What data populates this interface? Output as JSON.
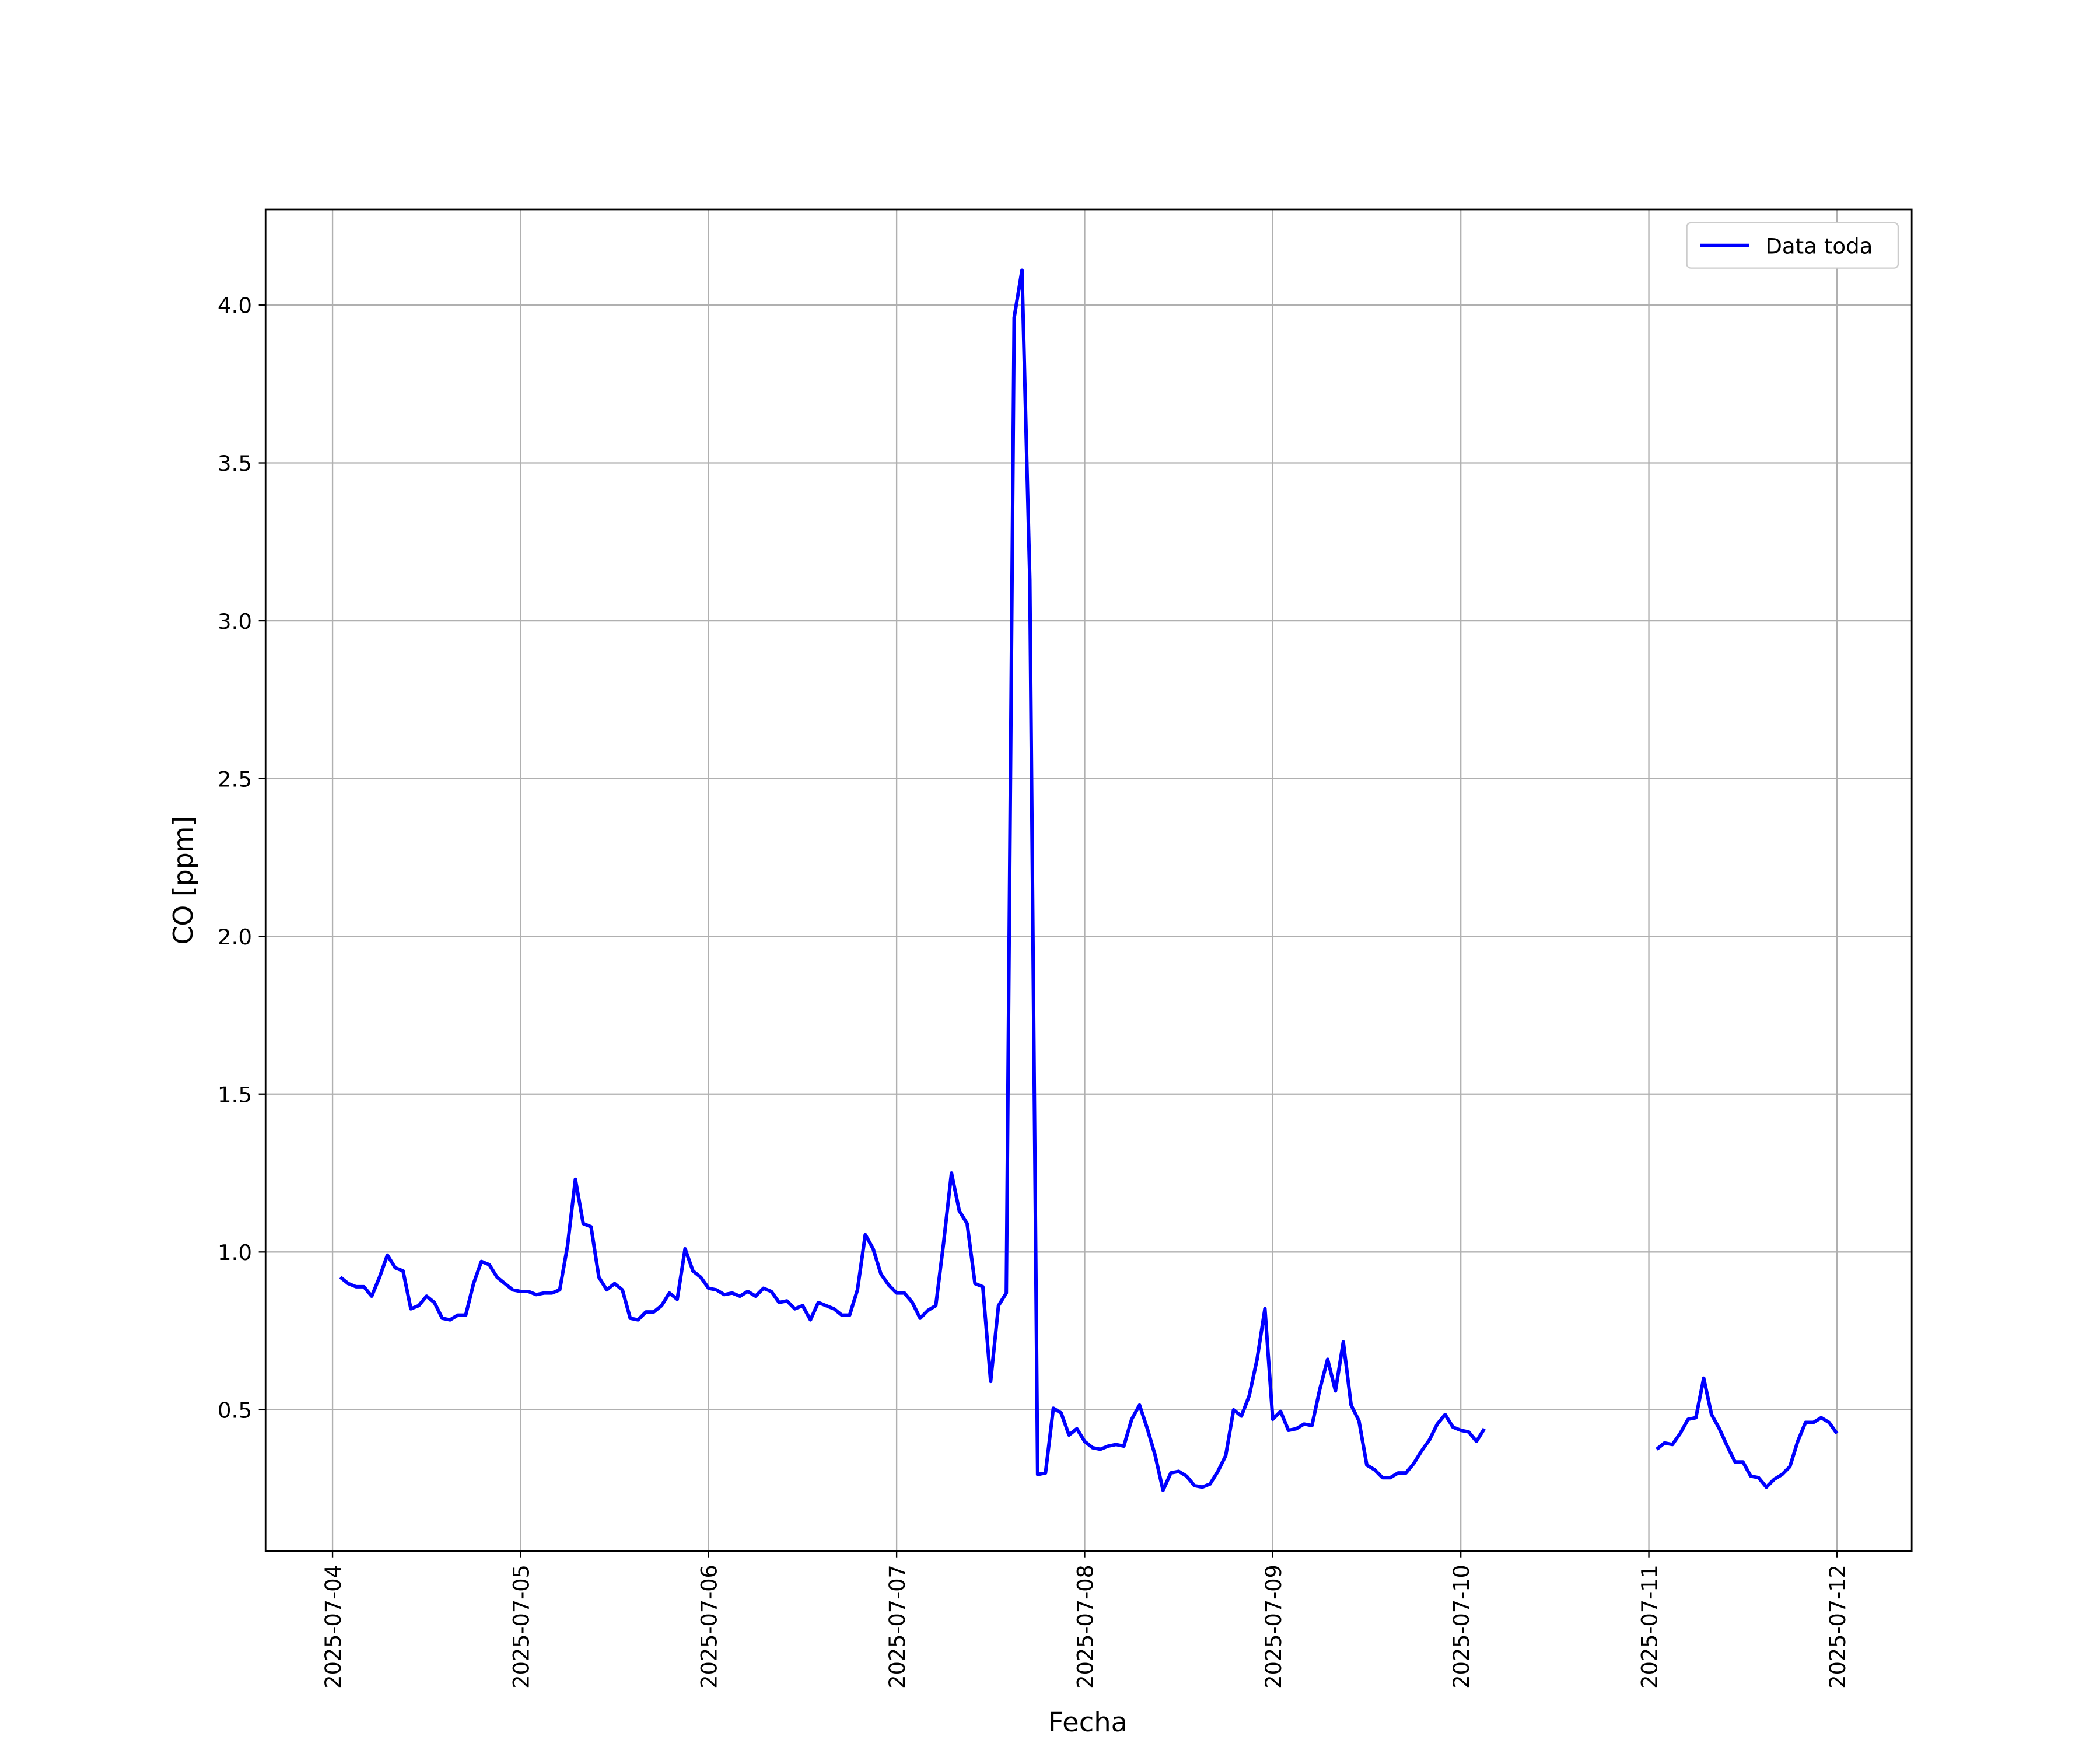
{
  "chart_data": {
    "type": "line",
    "xlabel": "Fecha",
    "ylabel": "CO [ppm]",
    "x": [
      "2025-07-04 01:00",
      "2025-07-04 02:00",
      "2025-07-04 03:00",
      "2025-07-04 04:00",
      "2025-07-04 05:00",
      "2025-07-04 06:00",
      "2025-07-04 07:00",
      "2025-07-04 08:00",
      "2025-07-04 09:00",
      "2025-07-04 10:00",
      "2025-07-04 11:00",
      "2025-07-04 12:00",
      "2025-07-04 13:00",
      "2025-07-04 14:00",
      "2025-07-04 15:00",
      "2025-07-04 16:00",
      "2025-07-04 17:00",
      "2025-07-04 18:00",
      "2025-07-04 19:00",
      "2025-07-04 20:00",
      "2025-07-04 21:00",
      "2025-07-04 22:00",
      "2025-07-04 23:00",
      "2025-07-05 00:00",
      "2025-07-05 01:00",
      "2025-07-05 02:00",
      "2025-07-05 03:00",
      "2025-07-05 04:00",
      "2025-07-05 05:00",
      "2025-07-05 06:00",
      "2025-07-05 07:00",
      "2025-07-05 08:00",
      "2025-07-05 09:00",
      "2025-07-05 10:00",
      "2025-07-05 11:00",
      "2025-07-05 12:00",
      "2025-07-05 13:00",
      "2025-07-05 14:00",
      "2025-07-05 15:00",
      "2025-07-05 16:00",
      "2025-07-05 17:00",
      "2025-07-05 18:00",
      "2025-07-05 19:00",
      "2025-07-05 20:00",
      "2025-07-05 21:00",
      "2025-07-05 22:00",
      "2025-07-05 23:00",
      "2025-07-06 00:00",
      "2025-07-06 01:00",
      "2025-07-06 02:00",
      "2025-07-06 03:00",
      "2025-07-06 04:00",
      "2025-07-06 05:00",
      "2025-07-06 06:00",
      "2025-07-06 07:00",
      "2025-07-06 08:00",
      "2025-07-06 09:00",
      "2025-07-06 10:00",
      "2025-07-06 11:00",
      "2025-07-06 12:00",
      "2025-07-06 13:00",
      "2025-07-06 14:00",
      "2025-07-06 15:00",
      "2025-07-06 16:00",
      "2025-07-06 17:00",
      "2025-07-06 18:00",
      "2025-07-06 19:00",
      "2025-07-06 20:00",
      "2025-07-06 21:00",
      "2025-07-06 22:00",
      "2025-07-06 23:00",
      "2025-07-07 00:00",
      "2025-07-07 01:00",
      "2025-07-07 02:00",
      "2025-07-07 03:00",
      "2025-07-07 04:00",
      "2025-07-07 05:00",
      "2025-07-07 06:00",
      "2025-07-07 07:00",
      "2025-07-07 08:00",
      "2025-07-07 09:00",
      "2025-07-07 10:00",
      "2025-07-07 11:00",
      "2025-07-07 12:00",
      "2025-07-07 13:00",
      "2025-07-07 14:00",
      "2025-07-07 15:00",
      "2025-07-07 16:00",
      "2025-07-07 17:00",
      "2025-07-07 18:00",
      "2025-07-07 19:00",
      "2025-07-07 20:00",
      "2025-07-07 21:00",
      "2025-07-07 22:00",
      "2025-07-07 23:00",
      "2025-07-08 00:00",
      "2025-07-08 01:00",
      "2025-07-08 02:00",
      "2025-07-08 03:00",
      "2025-07-08 04:00",
      "2025-07-08 05:00",
      "2025-07-08 06:00",
      "2025-07-08 07:00",
      "2025-07-08 08:00",
      "2025-07-08 09:00",
      "2025-07-08 10:00",
      "2025-07-08 11:00",
      "2025-07-08 12:00",
      "2025-07-08 13:00",
      "2025-07-08 14:00",
      "2025-07-08 15:00",
      "2025-07-08 16:00",
      "2025-07-08 17:00",
      "2025-07-08 18:00",
      "2025-07-08 19:00",
      "2025-07-08 20:00",
      "2025-07-08 21:00",
      "2025-07-08 22:00",
      "2025-07-08 23:00",
      "2025-07-09 00:00",
      "2025-07-09 01:00",
      "2025-07-09 02:00",
      "2025-07-09 03:00",
      "2025-07-09 04:00",
      "2025-07-09 05:00",
      "2025-07-09 06:00",
      "2025-07-09 07:00",
      "2025-07-09 08:00",
      "2025-07-09 09:00",
      "2025-07-09 10:00",
      "2025-07-09 11:00",
      "2025-07-09 12:00",
      "2025-07-09 13:00",
      "2025-07-09 14:00",
      "2025-07-09 15:00",
      "2025-07-09 16:00",
      "2025-07-09 17:00",
      "2025-07-09 18:00",
      "2025-07-09 19:00",
      "2025-07-09 20:00",
      "2025-07-09 21:00",
      "2025-07-09 22:00",
      "2025-07-09 23:00",
      "2025-07-10 00:00",
      "2025-07-10 01:00",
      "2025-07-10 02:00",
      "2025-07-10 03:00",
      "2025-07-10 04:00",
      "2025-07-11 01:00",
      "2025-07-11 02:00",
      "2025-07-11 03:00",
      "2025-07-11 04:00",
      "2025-07-11 05:00",
      "2025-07-11 06:00",
      "2025-07-11 07:00",
      "2025-07-11 08:00",
      "2025-07-11 09:00",
      "2025-07-11 10:00",
      "2025-07-11 11:00",
      "2025-07-11 12:00",
      "2025-07-11 13:00",
      "2025-07-11 14:00",
      "2025-07-11 15:00",
      "2025-07-11 16:00",
      "2025-07-11 17:00",
      "2025-07-11 18:00",
      "2025-07-11 19:00",
      "2025-07-11 20:00",
      "2025-07-11 21:00",
      "2025-07-11 22:00",
      "2025-07-11 23:00",
      "2025-07-12 00:00"
    ],
    "series": [
      {
        "name": "Data toda",
        "color": "#0000ff",
        "values": [
          0.92,
          0.9,
          0.89,
          0.89,
          0.86,
          0.92,
          0.99,
          0.95,
          0.94,
          0.82,
          0.83,
          0.86,
          0.84,
          0.79,
          0.785,
          0.8,
          0.8,
          0.9,
          0.97,
          0.96,
          0.92,
          0.9,
          0.88,
          0.875,
          0.875,
          0.865,
          0.87,
          0.87,
          0.88,
          1.02,
          1.23,
          1.09,
          1.08,
          0.92,
          0.88,
          0.9,
          0.88,
          0.79,
          0.785,
          0.81,
          0.81,
          0.83,
          0.87,
          0.85,
          1.01,
          0.94,
          0.92,
          0.885,
          0.88,
          0.865,
          0.87,
          0.86,
          0.875,
          0.86,
          0.885,
          0.875,
          0.84,
          0.845,
          0.82,
          0.83,
          0.785,
          0.84,
          0.83,
          0.82,
          0.8,
          0.8,
          0.88,
          1.055,
          1.01,
          0.93,
          0.895,
          0.87,
          0.87,
          0.84,
          0.79,
          0.815,
          0.83,
          1.03,
          1.25,
          1.13,
          1.09,
          0.9,
          0.89,
          0.59,
          0.83,
          0.87,
          3.96,
          4.11,
          3.13,
          0.295,
          0.3,
          0.505,
          0.49,
          0.42,
          0.44,
          0.4,
          0.38,
          0.375,
          0.385,
          0.39,
          0.385,
          0.47,
          0.515,
          0.44,
          0.355,
          0.245,
          0.3,
          0.305,
          0.29,
          0.26,
          0.255,
          0.265,
          0.305,
          0.355,
          0.5,
          0.48,
          0.545,
          0.66,
          0.82,
          0.47,
          0.495,
          0.435,
          0.44,
          0.455,
          0.45,
          0.565,
          0.66,
          0.56,
          0.715,
          0.515,
          0.465,
          0.325,
          0.31,
          0.285,
          0.285,
          0.3,
          0.3,
          0.33,
          0.37,
          0.405,
          0.455,
          0.485,
          0.445,
          0.435,
          0.43,
          0.4,
          0.44,
          null,
          0.375,
          0.395,
          0.39,
          0.425,
          0.47,
          0.475,
          0.6,
          0.485,
          0.44,
          0.385,
          0.335,
          0.335,
          0.29,
          0.285,
          0.255,
          0.28,
          0.295,
          0.32,
          0.4,
          0.46,
          0.46,
          0.475,
          0.46,
          0.425
        ]
      }
    ],
    "xlim": [
      "2025-07-03 15:27",
      "2025-07-12 09:33"
    ],
    "xticks": [
      "2025-07-04",
      "2025-07-05",
      "2025-07-06",
      "2025-07-07",
      "2025-07-08",
      "2025-07-09",
      "2025-07-10",
      "2025-07-11",
      "2025-07-12"
    ],
    "ylim": [
      0.052,
      4.303
    ],
    "yticks": [
      0.5,
      {
        "value": 1,
        "label": "1.0"
      },
      1.5,
      {
        "value": 2,
        "label": "2.0"
      },
      2.5,
      {
        "value": 3,
        "label": "3.0"
      },
      3.5,
      {
        "value": 4,
        "label": "4.0"
      }
    ],
    "grid": true,
    "legend": "upper right"
  }
}
